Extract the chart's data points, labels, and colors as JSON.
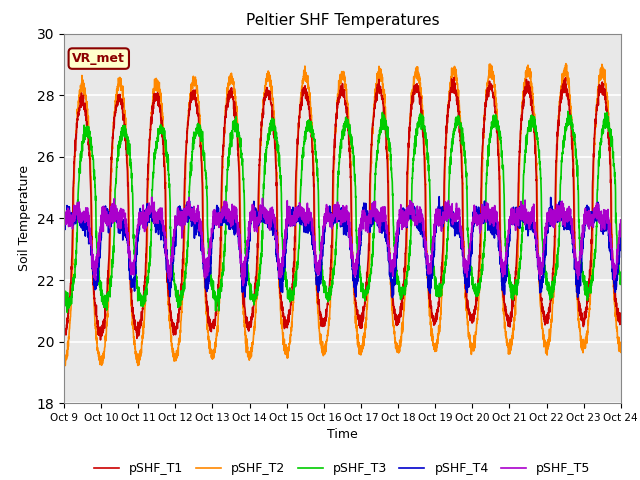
{
  "title": "Peltier SHF Temperatures",
  "xlabel": "Time",
  "ylabel": "Soil Temperature",
  "ylim": [
    18,
    30
  ],
  "yticks": [
    18,
    20,
    22,
    24,
    26,
    28,
    30
  ],
  "annotation_text": "VR_met",
  "xtick_labels": [
    "Oct 9",
    "Oct 10",
    "Oct 11",
    "Oct 12",
    "Oct 13",
    "Oct 14",
    "Oct 15",
    "Oct 16",
    "Oct 17",
    "Oct 18",
    "Oct 19",
    "Oct 20",
    "Oct 21",
    "Oct 22",
    "Oct 23",
    "Oct 24"
  ],
  "legend_labels": [
    "pSHF_T1",
    "pSHF_T2",
    "pSHF_T3",
    "pSHF_T4",
    "pSHF_T5"
  ],
  "colors": [
    "#cc0000",
    "#ff8800",
    "#00cc00",
    "#0000cc",
    "#aa00cc"
  ],
  "line_width": 1.2,
  "plot_bg": "#e8e8e8",
  "fig_bg": "#ffffff",
  "grid_color": "#ffffff",
  "n_points": 3600,
  "n_days": 15
}
